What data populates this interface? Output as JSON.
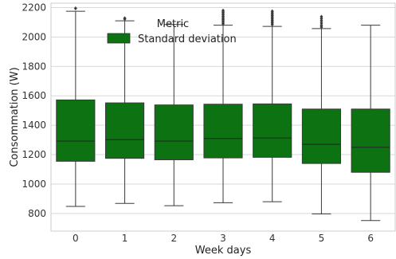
{
  "chart_data": {
    "type": "box",
    "xlabel": "Week days",
    "ylabel": "Consommation (W)",
    "categories": [
      "0",
      "1",
      "2",
      "3",
      "4",
      "5",
      "6"
    ],
    "ylim": [
      680,
      2230
    ],
    "yticks": [
      800,
      1000,
      1200,
      1400,
      1600,
      1800,
      2000,
      2200
    ],
    "grid": true,
    "legend": {
      "title": "Metric",
      "entries": [
        "Standard deviation"
      ],
      "placement": "top-center"
    },
    "box_color": "#0c7212",
    "series": [
      {
        "name": "Standard deviation",
        "boxes": [
          {
            "category": "0",
            "whisker_low": 848,
            "q1": 1155,
            "median": 1292,
            "q3": 1572,
            "whisker_high": 2175,
            "outliers": [
              2195
            ]
          },
          {
            "category": "1",
            "whisker_low": 868,
            "q1": 1175,
            "median": 1302,
            "q3": 1552,
            "whisker_high": 2110,
            "outliers": [
              2122,
              2128
            ]
          },
          {
            "category": "2",
            "whisker_low": 853,
            "q1": 1165,
            "median": 1292,
            "q3": 1538,
            "whisker_high": 2085,
            "outliers": []
          },
          {
            "category": "3",
            "whisker_low": 873,
            "q1": 1178,
            "median": 1310,
            "q3": 1543,
            "whisker_high": 2080,
            "outliers": [
              2090,
              2100,
              2110,
              2120,
              2130,
              2140,
              2150,
              2160,
              2170,
              2180
            ]
          },
          {
            "category": "4",
            "whisker_low": 880,
            "q1": 1182,
            "median": 1313,
            "q3": 1545,
            "whisker_high": 2072,
            "outliers": [
              2085,
              2095,
              2105,
              2115,
              2125,
              2135,
              2145,
              2155,
              2165,
              2175
            ]
          },
          {
            "category": "5",
            "whisker_low": 797,
            "q1": 1140,
            "median": 1270,
            "q3": 1510,
            "whisker_high": 2057,
            "outliers": [
              2068,
              2080,
              2095,
              2110,
              2125,
              2138
            ]
          },
          {
            "category": "6",
            "whisker_low": 752,
            "q1": 1080,
            "median": 1250,
            "q3": 1510,
            "whisker_high": 2080,
            "outliers": []
          }
        ]
      }
    ]
  }
}
